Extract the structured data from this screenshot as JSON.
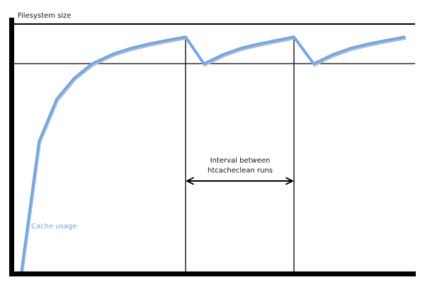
{
  "diagram": {
    "y_axis_label": "Filesystem size",
    "series_label": "Cache usage",
    "interval_label_line1": "Interval between",
    "interval_label_line2": "htcacheclean runs",
    "colors": {
      "cache_line": "#6aa8f0",
      "cache_shadow": "#b8b8b8",
      "axes": "#000000",
      "label_text": "#6aa8f0"
    }
  }
}
